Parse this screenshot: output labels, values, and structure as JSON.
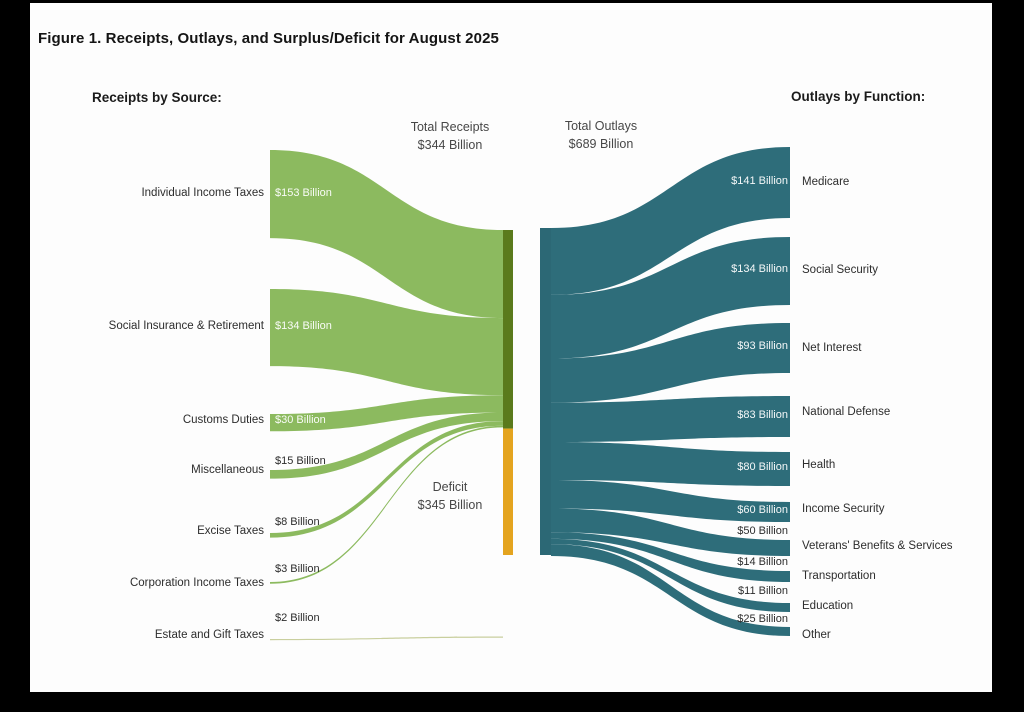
{
  "figure": {
    "title": "Figure 1. Receipts, Outlays, and Surplus/Deficit for August 2025",
    "receipts_header": "Receipts by Source:",
    "outlays_header": "Outlays by Function:"
  },
  "chart_data": {
    "type": "sankey",
    "title": "Figure 1. Receipts, Outlays, and Surplus/Deficit for August 2025",
    "unit": "billions of USD",
    "period": "August 2025",
    "totals": {
      "receipts": {
        "label": "Total Receipts",
        "value": 344,
        "value_label": "$344 Billion"
      },
      "outlays": {
        "label": "Total Outlays",
        "value": 689,
        "value_label": "$689 Billion"
      },
      "deficit": {
        "label": "Deficit",
        "value": 345,
        "value_label": "$345 Billion"
      }
    },
    "receipts_by_source": [
      {
        "label": "Individual Income Taxes",
        "value": 153,
        "value_label": "$153 Billion"
      },
      {
        "label": "Social Insurance & Retirement",
        "value": 134,
        "value_label": "$134 Billion"
      },
      {
        "label": "Customs Duties",
        "value": 30,
        "value_label": "$30 Billion"
      },
      {
        "label": "Miscellaneous",
        "value": 15,
        "value_label": "$15 Billion"
      },
      {
        "label": "Excise Taxes",
        "value": 8,
        "value_label": "$8 Billion"
      },
      {
        "label": "Corporation Income Taxes",
        "value": 3,
        "value_label": "$3 Billion"
      },
      {
        "label": "Estate and Gift Taxes",
        "value": 2,
        "value_label": "$2 Billion"
      }
    ],
    "outlays_by_function": [
      {
        "label": "Medicare",
        "value": 141,
        "value_label": "$141 Billion"
      },
      {
        "label": "Social Security",
        "value": 134,
        "value_label": "$134 Billion"
      },
      {
        "label": "Net Interest",
        "value": 93,
        "value_label": "$93 Billion"
      },
      {
        "label": "National Defense",
        "value": 83,
        "value_label": "$83 Billion"
      },
      {
        "label": "Health",
        "value": 80,
        "value_label": "$80 Billion"
      },
      {
        "label": "Income Security",
        "value": 60,
        "value_label": "$60 Billion"
      },
      {
        "label": "Veterans' Benefits & Services",
        "value": 50,
        "value_label": "$50 Billion"
      },
      {
        "label": "Transportation",
        "value": 14,
        "value_label": "$14 Billion"
      },
      {
        "label": "Education",
        "value": 11,
        "value_label": "$11 Billion"
      },
      {
        "label": "Other",
        "value": 25,
        "value_label": "$25 Billion"
      }
    ],
    "colors": {
      "receipts_flow": "#8CBA5F",
      "receipts_node": "#5A7A1C",
      "deficit_node": "#E4A41F",
      "outlays": "#2E6D7A",
      "outlays_node": "#2C6875",
      "estate_flow": "#C9CF9E"
    },
    "legend_position": "none",
    "grid": false
  }
}
